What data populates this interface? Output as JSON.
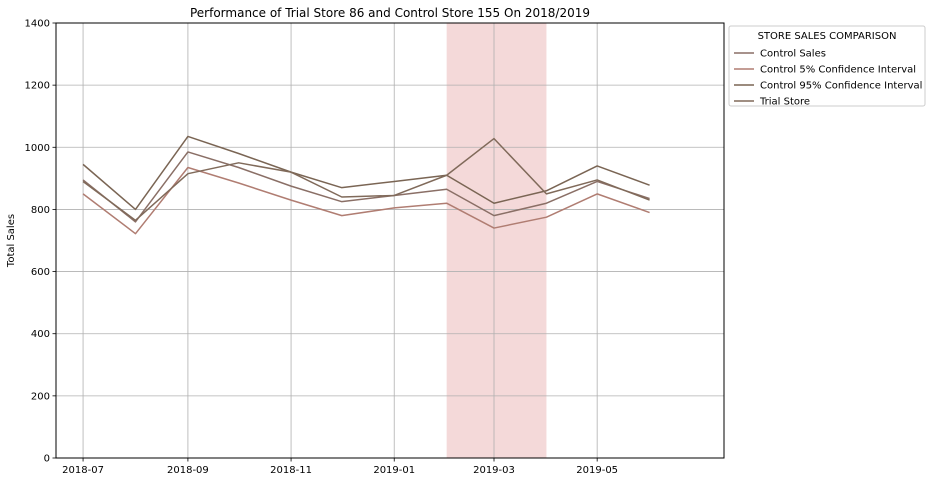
{
  "chart_data": {
    "type": "line",
    "title": "Performance of Trial Store 86 and Control Store 155 On 2018/2019",
    "xlabel": "",
    "ylabel": "Total Sales",
    "ylim": [
      0,
      1400
    ],
    "xlim": [
      "2018-06-15",
      "2019-07-15"
    ],
    "yticks": [
      0,
      200,
      400,
      600,
      800,
      1000,
      1200,
      1400
    ],
    "xticks": [
      "2018-07",
      "2018-09",
      "2018-11",
      "2019-01",
      "2019-03",
      "2019-05"
    ],
    "grid": true,
    "highlight": {
      "from": "2019-02-01",
      "to": "2019-04-01",
      "color": "#f4d9d9"
    },
    "x": [
      "2018-07-01",
      "2018-08-01",
      "2018-09-01",
      "2018-10-01",
      "2018-11-01",
      "2018-12-01",
      "2019-01-01",
      "2019-02-01",
      "2019-03-01",
      "2019-04-01",
      "2019-05-01",
      "2019-06-01"
    ],
    "legend": {
      "title": "STORE SALES COMPARISON",
      "placement": "outside-top-right"
    },
    "series": [
      {
        "name": "Control Sales",
        "color": "#8a6f66",
        "values": [
          895,
          760,
          985,
          935,
          875,
          825,
          845,
          865,
          780,
          820,
          890,
          835
        ]
      },
      {
        "name": "Control 5% Confidence Interval",
        "color": "#b07d72",
        "values": [
          850,
          722,
          935,
          885,
          830,
          780,
          805,
          820,
          740,
          775,
          850,
          790
        ]
      },
      {
        "name": "Control 95% Confidence Interval",
        "color": "#7a6554",
        "values": [
          945,
          800,
          1035,
          980,
          920,
          870,
          890,
          910,
          820,
          860,
          940,
          878
        ]
      },
      {
        "name": "Trial Store",
        "color": "#806a5a",
        "values": [
          890,
          765,
          915,
          950,
          920,
          840,
          845,
          910,
          1028,
          850,
          895,
          830
        ]
      }
    ]
  }
}
